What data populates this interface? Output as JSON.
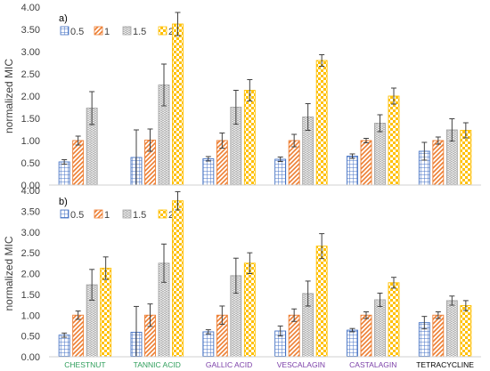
{
  "chart_data": [
    {
      "type": "bar",
      "panel_label": "a)",
      "ylabel": "normalized MIC",
      "ylim": [
        0,
        4
      ],
      "ytick_labels": [
        "0.00",
        "0.50",
        "1.00",
        "1.50",
        "2.00",
        "2.50",
        "3.00",
        "3.50",
        "4.00"
      ],
      "categories": [
        "CHESTNUT",
        "TANNIC ACID",
        "GALLIC ACID",
        "VESCALAGIN",
        "CASTALAGIN",
        "TETRACYCLINE"
      ],
      "show_category_labels": false,
      "legend": "top-left",
      "series": [
        {
          "name": "0.5",
          "values": [
            0.52,
            0.62,
            0.59,
            0.58,
            0.65,
            0.76
          ],
          "errors": [
            0.05,
            0.62,
            0.05,
            0.05,
            0.05,
            0.2
          ]
        },
        {
          "name": "1",
          "values": [
            1.0,
            1.01,
            1.0,
            1.0,
            1.0,
            1.0
          ],
          "errors": [
            0.1,
            0.25,
            0.17,
            0.14,
            0.05,
            0.08
          ]
        },
        {
          "name": "1.5",
          "values": [
            1.73,
            2.25,
            1.75,
            1.53,
            1.39,
            1.24
          ],
          "errors": [
            0.37,
            0.47,
            0.38,
            0.3,
            0.19,
            0.25
          ]
        },
        {
          "name": "2",
          "values": [
            0.0,
            3.62,
            2.13,
            2.8,
            2.0,
            1.23
          ],
          "errors": [
            0.0,
            0.26,
            0.24,
            0.13,
            0.18,
            0.17
          ]
        }
      ]
    },
    {
      "type": "bar",
      "panel_label": "b)",
      "ylabel": "normalized MIC",
      "ylim": [
        0,
        4
      ],
      "ytick_labels": [
        "0.00",
        "0.50",
        "1.00",
        "1.50",
        "2.00",
        "2.50",
        "3.00",
        "3.50",
        "4.00"
      ],
      "categories": [
        "CHESTNUT",
        "TANNIC ACID",
        "GALLIC ACID",
        "VESCALAGIN",
        "CASTALAGIN",
        "TETRACYCLINE"
      ],
      "show_category_labels": true,
      "legend": "top-left",
      "series": [
        {
          "name": "0.5",
          "values": [
            0.52,
            0.59,
            0.6,
            0.62,
            0.64,
            0.82
          ],
          "errors": [
            0.05,
            0.62,
            0.05,
            0.12,
            0.04,
            0.15
          ]
        },
        {
          "name": "1",
          "values": [
            1.0,
            1.0,
            1.0,
            1.0,
            1.0,
            1.0
          ],
          "errors": [
            0.1,
            0.27,
            0.22,
            0.15,
            0.08,
            0.08
          ]
        },
        {
          "name": "1.5",
          "values": [
            1.73,
            2.25,
            1.95,
            1.52,
            1.37,
            1.35
          ],
          "errors": [
            0.37,
            0.46,
            0.42,
            0.3,
            0.16,
            0.11
          ]
        },
        {
          "name": "2",
          "values": [
            2.13,
            3.75,
            2.25,
            2.66,
            1.78,
            1.23
          ],
          "errors": [
            0.27,
            0.22,
            0.25,
            0.3,
            0.13,
            0.12
          ]
        }
      ]
    }
  ],
  "category_colors": [
    "#2e9e5b",
    "#2e9e5b",
    "#7b3fa8",
    "#7b3fa8",
    "#7b3fa8",
    "#000000"
  ],
  "series_colors": [
    "#4472c4",
    "#ed7d31",
    "#a5a5a5",
    "#ffc000"
  ],
  "error_bar_color": "#404040",
  "grid": false
}
